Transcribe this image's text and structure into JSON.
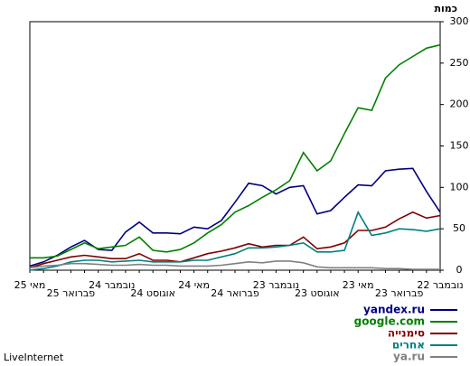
{
  "chart_data": {
    "type": "line",
    "title": "כמות",
    "footer": "LiveInternet",
    "categories": [
      "מאי 25",
      null,
      null,
      "פברואר 25",
      null,
      null,
      "נובמבר 24",
      null,
      null,
      "אוגוסט 24",
      null,
      null,
      "מאי 24",
      null,
      null,
      "פברואר 24",
      null,
      null,
      "נובמבר 23",
      null,
      null,
      "אוגוסט 23",
      null,
      null,
      "מאי 23",
      null,
      null,
      "פברואר 23",
      null,
      null,
      "נובמבר 22"
    ],
    "series": [
      {
        "name": "yandex.ru",
        "color": "#000080",
        "values": [
          5,
          10,
          18,
          28,
          36,
          25,
          24,
          46,
          58,
          45,
          45,
          44,
          52,
          50,
          60,
          82,
          105,
          102,
          92,
          100,
          102,
          68,
          72,
          88,
          103,
          102,
          120,
          122,
          123,
          95,
          70
        ]
      },
      {
        "name": "google.com",
        "color": "#008000",
        "values": [
          15,
          15,
          17,
          25,
          33,
          26,
          28,
          30,
          40,
          24,
          22,
          25,
          33,
          45,
          55,
          70,
          78,
          88,
          97,
          108,
          142,
          120,
          132,
          165,
          196,
          193,
          232,
          248,
          258,
          268,
          272
        ]
      },
      {
        "name": "סימנייה",
        "color": "#800000",
        "values": [
          3,
          8,
          12,
          16,
          18,
          16,
          14,
          14,
          20,
          12,
          12,
          10,
          15,
          20,
          23,
          27,
          32,
          28,
          30,
          30,
          40,
          26,
          28,
          33,
          48,
          48,
          52,
          62,
          70,
          63,
          66
        ]
      },
      {
        "name": "אחרים",
        "color": "#008080",
        "values": [
          0,
          2,
          5,
          10,
          12,
          12,
          10,
          11,
          12,
          10,
          10,
          10,
          12,
          12,
          16,
          20,
          27,
          27,
          28,
          30,
          33,
          22,
          22,
          24,
          70,
          42,
          45,
          50,
          49,
          47,
          50
        ]
      },
      {
        "name": "ya.ru",
        "color": "#808080",
        "values": [
          3,
          5,
          6,
          8,
          8,
          7,
          6,
          6,
          7,
          6,
          6,
          5,
          5,
          5,
          6,
          8,
          10,
          9,
          11,
          11,
          9,
          4,
          3,
          3,
          3,
          3,
          2,
          2,
          1,
          1,
          1
        ]
      }
    ],
    "ylim": [
      0,
      300
    ],
    "yticks": [
      0,
      50,
      100,
      150,
      200,
      250,
      300
    ],
    "grid": false
  }
}
